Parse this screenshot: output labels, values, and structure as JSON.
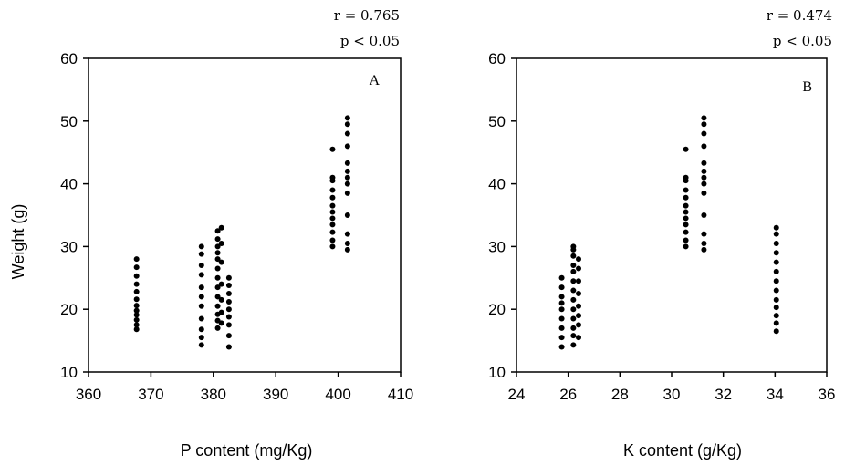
{
  "chart_data": [
    {
      "type": "scatter",
      "panel_label": "A",
      "xlabel": "P content   (mg/Kg)",
      "ylabel": "Weight  (g)",
      "stat_r": "r  =  0.765",
      "stat_p": "p    <  0.05",
      "xlim": [
        360,
        410
      ],
      "ylim": [
        10,
        60
      ],
      "x_ticks": [
        "360",
        "370",
        "380",
        "390",
        "400",
        "410"
      ],
      "y_ticks": [
        "10",
        "20",
        "30",
        "40",
        "50",
        "60"
      ],
      "series": [
        {
          "points": [
            [
              367.7,
              16.8
            ],
            [
              367.7,
              17.5
            ],
            [
              367.7,
              18.3
            ],
            [
              367.7,
              19.1
            ],
            [
              367.7,
              19.8
            ],
            [
              367.7,
              20.6
            ],
            [
              367.7,
              21.6
            ],
            [
              367.7,
              22.8
            ],
            [
              367.7,
              24.0
            ],
            [
              367.7,
              25.3
            ],
            [
              367.7,
              26.7
            ],
            [
              367.7,
              28.0
            ],
            [
              378.1,
              14.3
            ],
            [
              378.1,
              15.5
            ],
            [
              378.1,
              16.8
            ],
            [
              378.1,
              18.5
            ],
            [
              378.1,
              20.5
            ],
            [
              378.1,
              22.0
            ],
            [
              378.1,
              23.5
            ],
            [
              378.1,
              25.5
            ],
            [
              378.1,
              27.0
            ],
            [
              378.1,
              28.8
            ],
            [
              378.1,
              30.0
            ],
            [
              380.7,
              17.0
            ],
            [
              380.7,
              18.2
            ],
            [
              380.7,
              19.2
            ],
            [
              380.7,
              20.5
            ],
            [
              380.7,
              22.0
            ],
            [
              380.7,
              23.5
            ],
            [
              380.7,
              25.0
            ],
            [
              380.7,
              26.5
            ],
            [
              380.7,
              28.0
            ],
            [
              380.7,
              29.0
            ],
            [
              380.7,
              30.0
            ],
            [
              380.7,
              31.2
            ],
            [
              380.7,
              32.5
            ],
            [
              381.3,
              17.8
            ],
            [
              381.3,
              19.5
            ],
            [
              381.3,
              21.5
            ],
            [
              381.3,
              24.0
            ],
            [
              381.3,
              27.5
            ],
            [
              381.3,
              30.5
            ],
            [
              381.3,
              33.0
            ],
            [
              382.5,
              14.0
            ],
            [
              382.5,
              15.8
            ],
            [
              382.5,
              17.5
            ],
            [
              382.5,
              18.8
            ],
            [
              382.5,
              20.0
            ],
            [
              382.5,
              21.2
            ],
            [
              382.5,
              22.5
            ],
            [
              382.5,
              23.8
            ],
            [
              382.5,
              25.0
            ],
            [
              399.1,
              30.0
            ],
            [
              399.1,
              31.0
            ],
            [
              399.1,
              32.3
            ],
            [
              399.1,
              33.5
            ],
            [
              399.1,
              34.5
            ],
            [
              399.1,
              35.5
            ],
            [
              399.1,
              36.5
            ],
            [
              399.1,
              37.8
            ],
            [
              399.1,
              39.0
            ],
            [
              399.1,
              40.5
            ],
            [
              399.1,
              41.0
            ],
            [
              399.1,
              45.5
            ],
            [
              401.5,
              29.5
            ],
            [
              401.5,
              30.5
            ],
            [
              401.5,
              32.0
            ],
            [
              401.5,
              35.0
            ],
            [
              401.5,
              38.5
            ],
            [
              401.5,
              40.0
            ],
            [
              401.5,
              41.0
            ],
            [
              401.5,
              42.0
            ],
            [
              401.5,
              43.3
            ],
            [
              401.5,
              46.0
            ],
            [
              401.5,
              48.0
            ],
            [
              401.5,
              49.5
            ],
            [
              401.5,
              50.5
            ]
          ]
        }
      ]
    },
    {
      "type": "scatter",
      "panel_label": "B",
      "xlabel": "K content     (g/Kg)",
      "ylabel": "",
      "stat_r": "r  =  0.474",
      "stat_p": "p  <  0.05",
      "xlim": [
        24,
        36
      ],
      "ylim": [
        10,
        60
      ],
      "x_ticks": [
        "24",
        "26",
        "28",
        "30",
        "32",
        "34",
        "36"
      ],
      "y_ticks": [
        "10",
        "20",
        "30",
        "40",
        "50",
        "60"
      ],
      "series": [
        {
          "points": [
            [
              25.75,
              14.0
            ],
            [
              25.75,
              15.5
            ],
            [
              25.75,
              17.0
            ],
            [
              25.75,
              18.5
            ],
            [
              25.75,
              20.0
            ],
            [
              25.75,
              21.0
            ],
            [
              25.75,
              22.0
            ],
            [
              25.75,
              23.5
            ],
            [
              25.75,
              25.0
            ],
            [
              26.2,
              14.3
            ],
            [
              26.2,
              15.8
            ],
            [
              26.2,
              17.0
            ],
            [
              26.2,
              18.5
            ],
            [
              26.2,
              20.0
            ],
            [
              26.2,
              21.5
            ],
            [
              26.2,
              23.0
            ],
            [
              26.2,
              24.5
            ],
            [
              26.2,
              26.0
            ],
            [
              26.2,
              27.0
            ],
            [
              26.2,
              28.5
            ],
            [
              26.2,
              29.5
            ],
            [
              26.2,
              30.0
            ],
            [
              26.4,
              15.5
            ],
            [
              26.4,
              17.5
            ],
            [
              26.4,
              19.0
            ],
            [
              26.4,
              20.5
            ],
            [
              26.4,
              22.5
            ],
            [
              26.4,
              24.5
            ],
            [
              26.4,
              26.5
            ],
            [
              26.4,
              28.0
            ],
            [
              30.55,
              30.0
            ],
            [
              30.55,
              31.0
            ],
            [
              30.55,
              32.3
            ],
            [
              30.55,
              33.5
            ],
            [
              30.55,
              34.5
            ],
            [
              30.55,
              35.5
            ],
            [
              30.55,
              36.5
            ],
            [
              30.55,
              37.8
            ],
            [
              30.55,
              39.0
            ],
            [
              30.55,
              40.5
            ],
            [
              30.55,
              41.0
            ],
            [
              30.55,
              45.5
            ],
            [
              31.25,
              29.5
            ],
            [
              31.25,
              30.5
            ],
            [
              31.25,
              32.0
            ],
            [
              31.25,
              35.0
            ],
            [
              31.25,
              38.5
            ],
            [
              31.25,
              40.0
            ],
            [
              31.25,
              41.0
            ],
            [
              31.25,
              42.0
            ],
            [
              31.25,
              43.3
            ],
            [
              31.25,
              46.0
            ],
            [
              31.25,
              48.0
            ],
            [
              31.25,
              49.5
            ],
            [
              31.25,
              50.5
            ],
            [
              34.05,
              16.5
            ],
            [
              34.05,
              17.8
            ],
            [
              34.05,
              19.0
            ],
            [
              34.05,
              20.3
            ],
            [
              34.05,
              21.5
            ],
            [
              34.05,
              23.0
            ],
            [
              34.05,
              24.5
            ],
            [
              34.05,
              26.0
            ],
            [
              34.05,
              27.5
            ],
            [
              34.05,
              29.0
            ],
            [
              34.05,
              30.5
            ],
            [
              34.05,
              32.0
            ],
            [
              34.05,
              33.0
            ]
          ]
        }
      ]
    }
  ]
}
